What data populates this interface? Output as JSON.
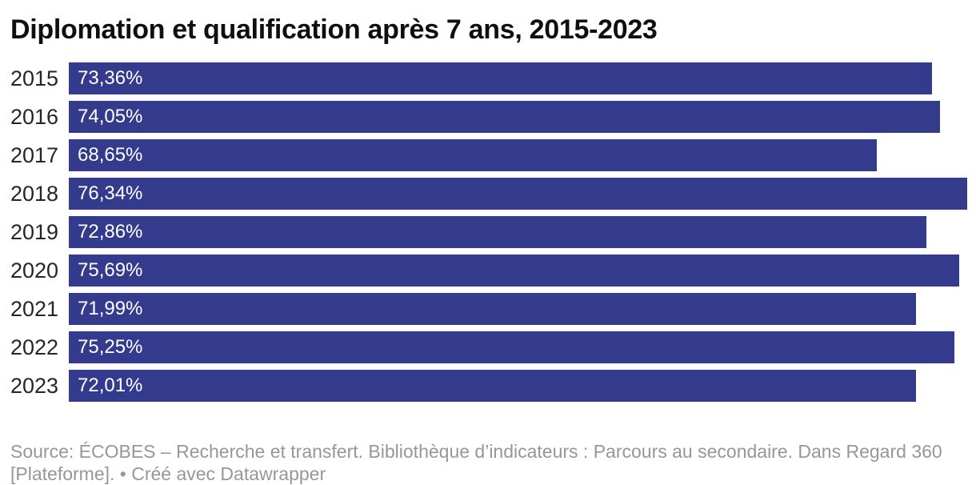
{
  "title": "Diplomation et qualification après 7 ans, 2015-2023",
  "chart_data": {
    "type": "bar",
    "orientation": "horizontal",
    "title": "Diplomation et qualification après 7 ans, 2015-2023",
    "categories": [
      "2015",
      "2016",
      "2017",
      "2018",
      "2019",
      "2020",
      "2021",
      "2022",
      "2023"
    ],
    "values": [
      73.36,
      74.05,
      68.65,
      76.34,
      72.86,
      75.69,
      71.99,
      75.25,
      72.01
    ],
    "value_labels": [
      "73,36%",
      "74,05%",
      "68,65%",
      "76,34%",
      "72,86%",
      "75,69%",
      "71,99%",
      "75,25%",
      "72,01%"
    ],
    "xlabel": "",
    "ylabel": "",
    "xlim": [
      0,
      77.1
    ],
    "grid": false,
    "legend": "none",
    "bar_color": "#343b8c",
    "value_label_color": "#ffffff",
    "category_label_color": "#262626"
  },
  "footer": {
    "source_line1": "Source: ÉCOBES – Recherche et transfert. Bibliothèque d’indicateurs : Parcours au secondaire. Dans Regard 360",
    "source_line2": "[Plateforme]. • Créé avec Datawrapper"
  }
}
